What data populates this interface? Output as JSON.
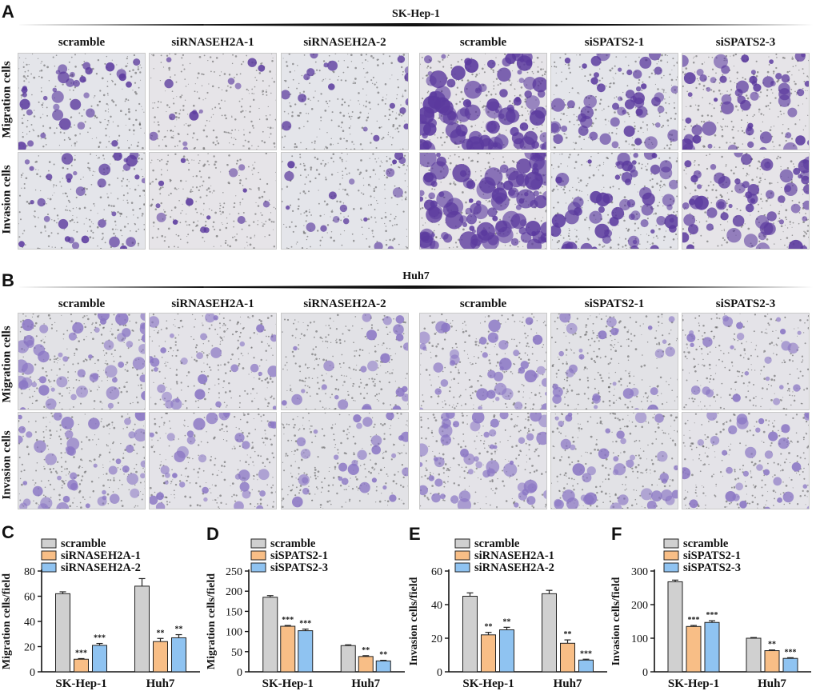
{
  "panel_a": {
    "letter": "A",
    "cell_line": "SK-Hep-1",
    "columns": [
      "scramble",
      "siRNASEH2A-1",
      "siRNASEH2A-2",
      "scramble",
      "siSPATS2-1",
      "siSPATS2-3"
    ],
    "rows": [
      "Migration cells",
      "Invasion cells"
    ],
    "densities": [
      [
        0.3,
        0.12,
        0.16,
        0.85,
        0.45,
        0.5
      ],
      [
        0.28,
        0.13,
        0.16,
        0.95,
        0.55,
        0.55
      ]
    ],
    "stain_color": "#5b3a9e"
  },
  "panel_b": {
    "letter": "B",
    "cell_line": "Huh7",
    "columns": [
      "scramble",
      "siRNASEH2A-1",
      "siRNASEH2A-2",
      "scramble",
      "siSPATS2-1",
      "siSPATS2-3"
    ],
    "rows": [
      "Migration cells",
      "Invasion cells"
    ],
    "densities": [
      [
        0.45,
        0.25,
        0.22,
        0.35,
        0.25,
        0.22
      ],
      [
        0.4,
        0.3,
        0.25,
        0.45,
        0.35,
        0.3
      ]
    ],
    "stain_color": "#8a76c4"
  },
  "chart_data": [
    {
      "type": "bar",
      "letter": "C",
      "categories": [
        "SK-Hep-1",
        "Huh7"
      ],
      "series": [
        {
          "name": "scramble",
          "values": [
            62,
            68
          ],
          "errors": [
            1.5,
            6
          ]
        },
        {
          "name": "siRNASEH2A-1",
          "values": [
            10,
            24
          ],
          "errors": [
            0.5,
            2.5
          ]
        },
        {
          "name": "siRNASEH2A-2",
          "values": [
            21,
            27
          ],
          "errors": [
            1.5,
            2.5
          ]
        }
      ],
      "significance": [
        [
          "",
          "***",
          "***"
        ],
        [
          "",
          "**",
          "**"
        ]
      ],
      "ylabel": "Migration cells/field",
      "ylim": [
        0,
        80
      ],
      "yticks": [
        0,
        20,
        40,
        60,
        80
      ]
    },
    {
      "type": "bar",
      "letter": "D",
      "categories": [
        "SK-Hep-1",
        "Huh7"
      ],
      "series": [
        {
          "name": "scramble",
          "values": [
            185,
            65
          ],
          "errors": [
            4,
            2
          ]
        },
        {
          "name": "siSPATS2-1",
          "values": [
            113,
            38
          ],
          "errors": [
            2,
            2
          ]
        },
        {
          "name": "siSPATS2-3",
          "values": [
            102,
            27
          ],
          "errors": [
            4,
            1.5
          ]
        }
      ],
      "significance": [
        [
          "",
          "***",
          "***"
        ],
        [
          "",
          "**",
          "**"
        ]
      ],
      "ylabel": "Migration cells/field",
      "ylim": [
        0,
        250
      ],
      "yticks": [
        0,
        50,
        100,
        150,
        200,
        250
      ]
    },
    {
      "type": "bar",
      "letter": "E",
      "categories": [
        "SK-Hep-1",
        "Huh7"
      ],
      "series": [
        {
          "name": "scramble",
          "values": [
            45,
            46.5
          ],
          "errors": [
            2,
            2
          ]
        },
        {
          "name": "siRNASEH2A-1",
          "values": [
            22,
            17
          ],
          "errors": [
            1.5,
            2
          ]
        },
        {
          "name": "siRNASEH2A-2",
          "values": [
            25,
            7
          ],
          "errors": [
            1.5,
            0.5
          ]
        }
      ],
      "significance": [
        [
          "",
          "**",
          "**"
        ],
        [
          "",
          "**",
          "***"
        ]
      ],
      "ylabel": "Invasion cells/field",
      "ylim": [
        0,
        60
      ],
      "yticks": [
        0,
        20,
        40,
        60
      ]
    },
    {
      "type": "bar",
      "letter": "F",
      "categories": [
        "SK-Hep-1",
        "Huh7"
      ],
      "series": [
        {
          "name": "scramble",
          "values": [
            268,
            100
          ],
          "errors": [
            5,
            2
          ]
        },
        {
          "name": "siSPATS2-1",
          "values": [
            135,
            63
          ],
          "errors": [
            3,
            2
          ]
        },
        {
          "name": "siSPATS2-3",
          "values": [
            147,
            40
          ],
          "errors": [
            5,
            2
          ]
        }
      ],
      "significance": [
        [
          "",
          "***",
          "***"
        ],
        [
          "",
          "**",
          "***"
        ]
      ],
      "ylabel": "Invasion cells/field",
      "ylim": [
        0,
        300
      ],
      "yticks": [
        0,
        100,
        200,
        300
      ]
    }
  ],
  "colors": {
    "scramble": "#d0d0d0",
    "knockdown_1": "#f8be86",
    "knockdown_2": "#8fc3f1"
  }
}
